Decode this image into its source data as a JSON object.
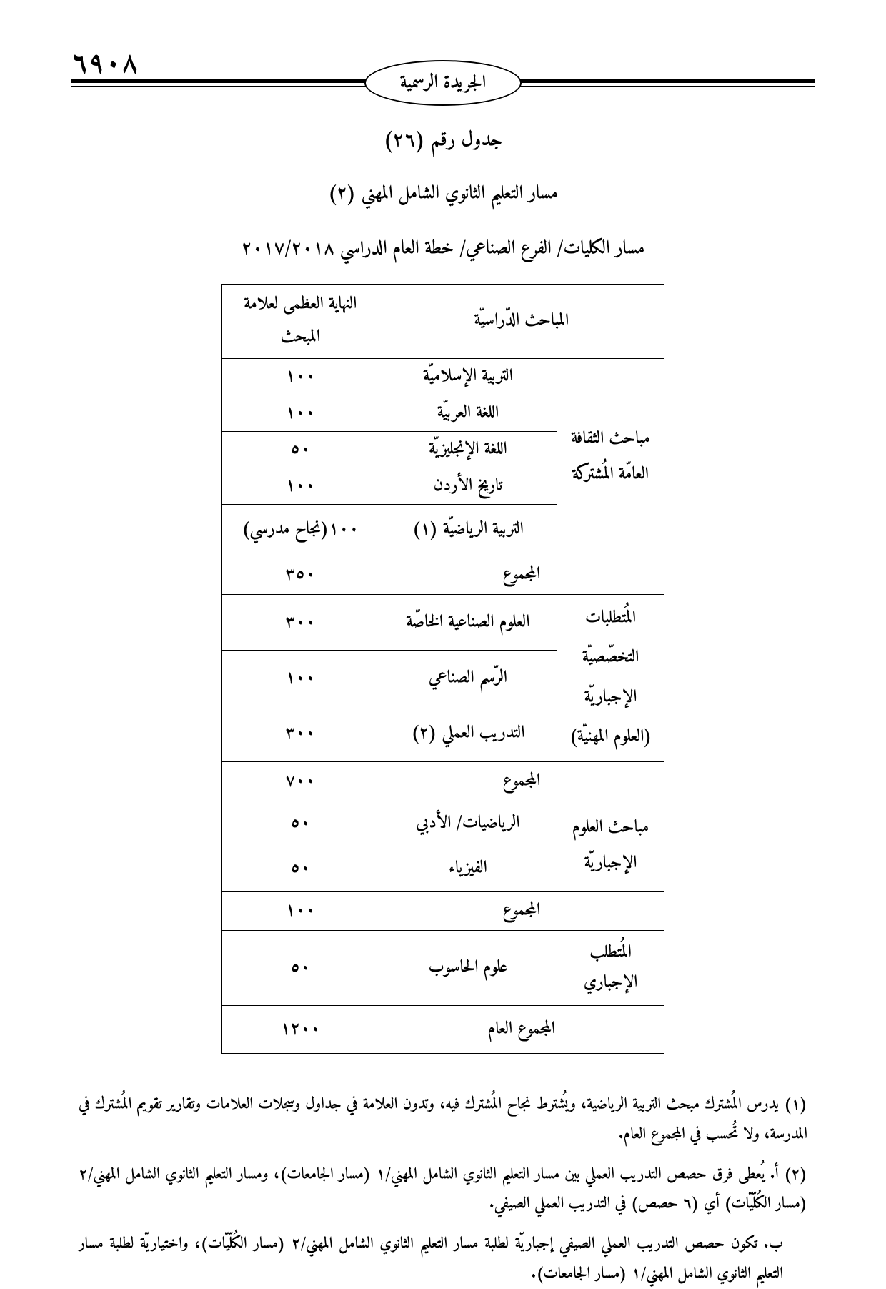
{
  "page_number": "٦٩٠٨",
  "gazette": "الجريدة الرسمية",
  "title_table_no": "جدول رقم (٢٦)",
  "title_track": "مسار التعليم الثانوي الشامل المهني (٢)",
  "title_plan": "مسار الكليات/ الفرع الصناعي/ خطة العام الدراسي ٢٠١٧/٢٠١٨",
  "table": {
    "header_subjects": "المباحث الدّراسيّة",
    "header_max": "النهاية العظمى لعلامة المبحث",
    "groups": [
      {
        "category": "مباحث الثقافة العامّة المُشتركة",
        "rows": [
          {
            "subject": "التربية الإسلاميّة",
            "mark": "١٠٠"
          },
          {
            "subject": "اللغة العربيّة",
            "mark": "١٠٠"
          },
          {
            "subject": "اللغة الإنجليزيّة",
            "mark": "٥٠"
          },
          {
            "subject": "تاريخ الأردن",
            "mark": "١٠٠"
          },
          {
            "subject": "التربية الرياضيّة (١)",
            "mark": "١٠٠(نجاح مدرسي)"
          }
        ],
        "total_label": "المجموع",
        "total_value": "٣٥٠"
      },
      {
        "category": "المُتطلبات التخصّصيّة الإجباريّة (العلوم المهنيّة)",
        "rows": [
          {
            "subject": "العلوم الصناعية الخاصّة",
            "mark": "٣٠٠"
          },
          {
            "subject": "الرّسم الصناعي",
            "mark": "١٠٠"
          },
          {
            "subject": "التدريب العملي (٢)",
            "mark": "٣٠٠"
          }
        ],
        "total_label": "المجموع",
        "total_value": "٧٠٠"
      },
      {
        "category": "مباحث العلوم الإجباريّة",
        "rows": [
          {
            "subject": "الرياضيات/ الأدبي",
            "mark": "٥٠"
          },
          {
            "subject": "الفيزياء",
            "mark": "٥٠"
          }
        ],
        "total_label": "المجموع",
        "total_value": "١٠٠"
      },
      {
        "category": "المُتطلب الإجباري",
        "rows": [
          {
            "subject": "علوم الحاسوب",
            "mark": "٥٠"
          }
        ]
      }
    ],
    "grand_total_label": "المجموع العام",
    "grand_total_value": "١٢٠٠"
  },
  "notes": {
    "n1": "(١) يدرس المُشترك مبحث التربية الرياضية، ويُشترط نجاح المُشترك فيه، وتدون العلامة في جداول وسجلات العلامات وتقارير تقويم المُشترك في المدرسة، ولا تُحسب في المجموع العام.",
    "n2a": "(٢) أ. يُعطى فرق حصص التدريب العملي بين مسار التعليم الثانوي الشامل المهني/١ (مسار الجامعات)، ومسار التعليم الثانوي الشامل المهني/٢ (مسار الكُلّيّات) أي (٦ حصص) في التدريب العملي الصيفي.",
    "n2b": "ب. تكون حصص التدريب العملي الصيفي إجباريّة لطلبة مسار التعليم الثانوي الشامل المهني/٢ (مسار الكُلّيّات)، واختياريّة لطلبة مسار التعليم الثانوي الشامل المهني/١ (مسار الجامعات)."
  },
  "colors": {
    "ink": "#000000",
    "paper": "#ffffff"
  }
}
